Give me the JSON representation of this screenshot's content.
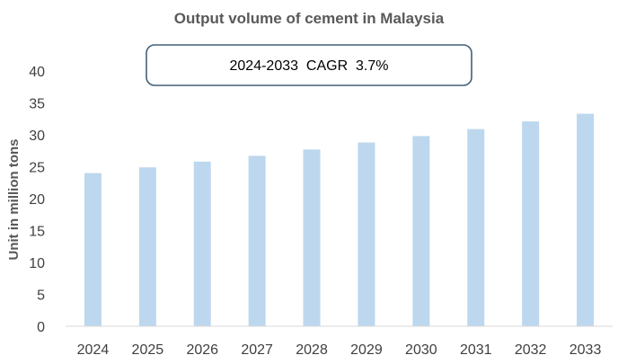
{
  "chart_data": {
    "type": "bar",
    "title": "Output volume of cement in Malaysia",
    "annotation": "2024-2033  CAGR  3.7%",
    "xlabel": "",
    "ylabel": "Unit in million tons",
    "categories": [
      "2024",
      "2025",
      "2026",
      "2027",
      "2028",
      "2029",
      "2030",
      "2031",
      "2032",
      "2033"
    ],
    "values": [
      24.0,
      24.9,
      25.8,
      26.7,
      27.7,
      28.8,
      29.8,
      30.9,
      32.1,
      33.3
    ],
    "ylim": [
      0,
      40
    ],
    "yticks": [
      "0",
      "5",
      "10",
      "15",
      "20",
      "25",
      "30",
      "35",
      "40"
    ],
    "grid": false,
    "legend": "none",
    "colors": {
      "bar": "#bdd7ee",
      "axis": "#d9d9d9",
      "annotation_border": "#41607a",
      "text": "#404040",
      "title": "#595959"
    }
  }
}
